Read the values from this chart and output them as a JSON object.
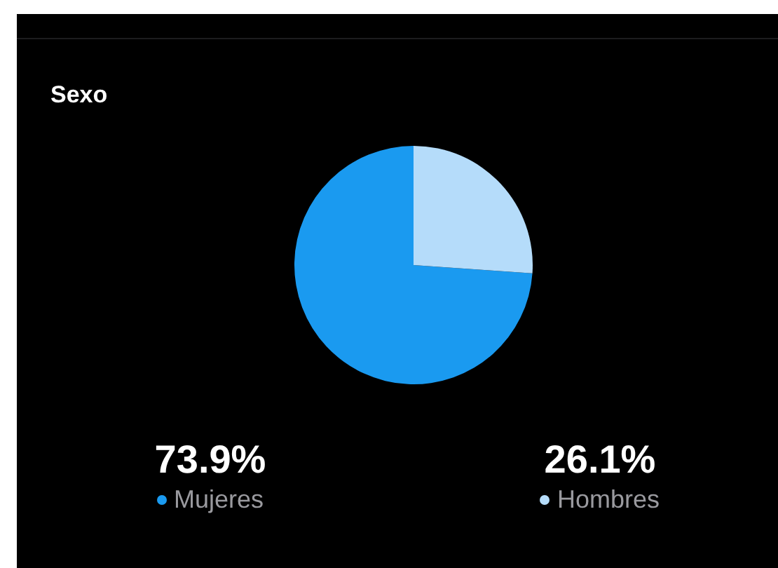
{
  "chart_data": {
    "type": "pie",
    "title": "Sexo",
    "categories": [
      "Mujeres",
      "Hombres"
    ],
    "values": [
      73.9,
      26.1
    ],
    "colors": [
      "#1a9af0",
      "#b5dcfa"
    ],
    "value_labels": [
      "73.9%",
      "26.1%"
    ],
    "legend": "bottom"
  }
}
